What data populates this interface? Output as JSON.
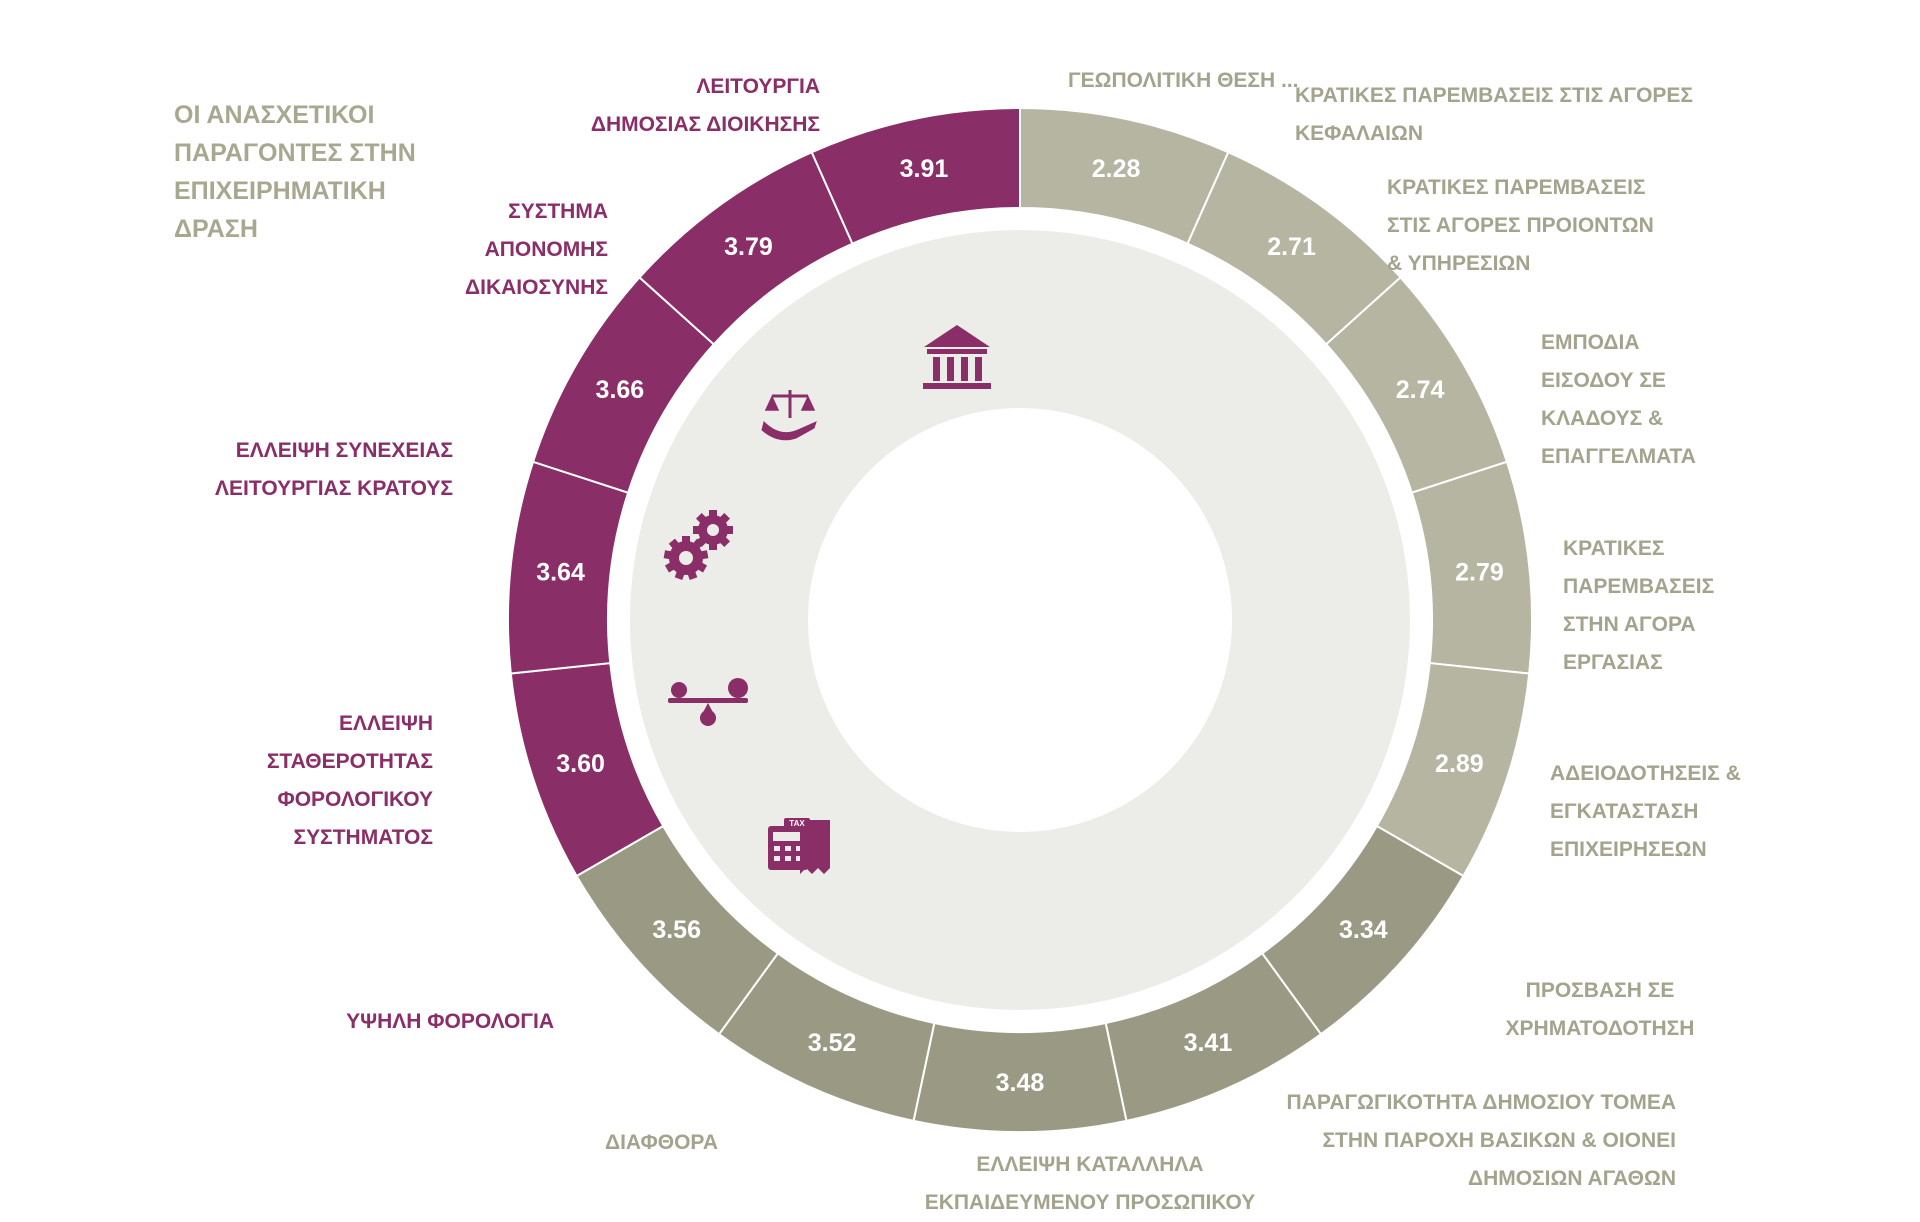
{
  "title": "ΟΙ ΑΝΑΣΧΕΤΙΚΟΙ\nΠΑΡΑΓΟΝΤΕΣ ΣΤΗΝ\nΕΠΙΧΕΙΡΗΜΑΤΙΚΗ\nΔΡΑΣΗ",
  "colors": {
    "purple": "#8a2e68",
    "olive": "#9a9a84",
    "light": "#b5b5a2",
    "inner_band": "#ecece8",
    "label_grey": "#a3a38e"
  },
  "icons": [
    "bank-building-icon",
    "justice-scales-hand-icon",
    "gears-icon",
    "balance-seesaw-icon",
    "tax-calculator-receipt-icon"
  ],
  "chart_data": {
    "type": "donut",
    "segments": [
      {
        "label": "ΓΕΩΠΟΛΙΤΙΚΗ ΘΕΣΗ ...",
        "value": 2.28,
        "display": "2.28",
        "color": "light"
      },
      {
        "label": "ΚΡΑΤΙΚΕΣ ΠΑΡΕΜΒΑΣΕΙΣ ΣΤΙΣ ΑΓΟΡΕΣ\nΚΕΦΑΛΑΙΩΝ",
        "value": 2.71,
        "display": "2.71",
        "color": "light"
      },
      {
        "label": "ΚΡΑΤΙΚΕΣ ΠΑΡΕΜΒΑΣΕΙΣ\nΣΤΙΣ ΑΓΟΡΕΣ ΠΡΟΙΟΝΤΩΝ\n& ΥΠΗΡΕΣΙΩΝ",
        "value": 2.74,
        "display": "2.74",
        "color": "light"
      },
      {
        "label": "ΕΜΠΟΔΙΑ\nΕΙΣΟΔΟΥ ΣΕ\nΚΛΑΔΟΥΣ &\nΕΠΑΓΓΕΛΜΑΤΑ",
        "value": 2.79,
        "display": "2.79",
        "color": "light"
      },
      {
        "label": "ΚΡΑΤΙΚΕΣ\nΠΑΡΕΜΒΑΣΕΙΣ\nΣΤΗΝ ΑΓΟΡΑ\nΕΡΓΑΣΙΑΣ",
        "value": 2.89,
        "display": "2.89",
        "color": "light"
      },
      {
        "label": "ΑΔΕΙΟΔΟΤΗΣΕΙΣ &\nΕΓΚΑΤΑΣΤΑΣΗ\nΕΠΙΧΕΙΡΗΣΕΩΝ",
        "value": 3.34,
        "display": "3.34",
        "color": "olive"
      },
      {
        "label": "ΠΡΟΣΒΑΣΗ ΣΕ\nΧΡΗΜΑΤΟΔΟΤΗΣΗ",
        "value": 3.41,
        "display": "3.41",
        "color": "olive"
      },
      {
        "label": "ΠΑΡΑΓΩΓΙΚΟΤΗΤΑ ΔΗΜΟΣΙΟΥ ΤΟΜΕΑ\nΣΤΗΝ ΠΑΡΟΧΗ ΒΑΣΙΚΩΝ & ΟΙΟΝΕΙ\nΔΗΜΟΣΙΩΝ ΑΓΑΘΩΝ",
        "value": 3.48,
        "display": "3.48",
        "color": "olive"
      },
      {
        "label": "ΕΛΛΕΙΨΗ ΚΑΤΑΛΛΗΛΑ\nΕΚΠΑΙΔΕΥΜΕΝΟΥ ΠΡΟΣΩΠΙΚΟΥ",
        "value": 3.52,
        "display": "3.52",
        "color": "olive"
      },
      {
        "label": "ΔΙΑΦΘΟΡΑ",
        "value": 3.56,
        "display": "3.56",
        "color": "olive"
      },
      {
        "label": "ΥΨΗΛΗ ΦΟΡΟΛΟΓΙΑ",
        "value": 3.6,
        "display": "3.60",
        "color": "purple"
      },
      {
        "label": "ΕΛΛΕΙΨΗ\nΣΤΑΘΕΡΟΤΗΤΑΣ\nΦΟΡΟΛΟΓΙΚΟΥ\nΣΥΣΤΗΜΑΤΟΣ",
        "value": 3.64,
        "display": "3.64",
        "color": "purple"
      },
      {
        "label": "ΕΛΛΕΙΨΗ ΣΥΝΕΧΕΙΑΣ\nΛΕΙΤΟΥΡΓΙΑΣ ΚΡΑΤΟΥΣ",
        "value": 3.66,
        "display": "3.66",
        "color": "purple"
      },
      {
        "label": "ΣΥΣΤΗΜΑ\nΑΠΟΝΟΜΗΣ\nΔΙΚΑΙΟΣΥΝΗΣ",
        "value": 3.79,
        "display": "3.79",
        "color": "purple"
      },
      {
        "label": "ΛΕΙΤΟΥΡΓΙΑ\nΔΗΜΟΣΙΑΣ ΔΙΟΙΚΗΣΗΣ",
        "value": 3.91,
        "display": "3.91",
        "color": "purple"
      }
    ]
  }
}
